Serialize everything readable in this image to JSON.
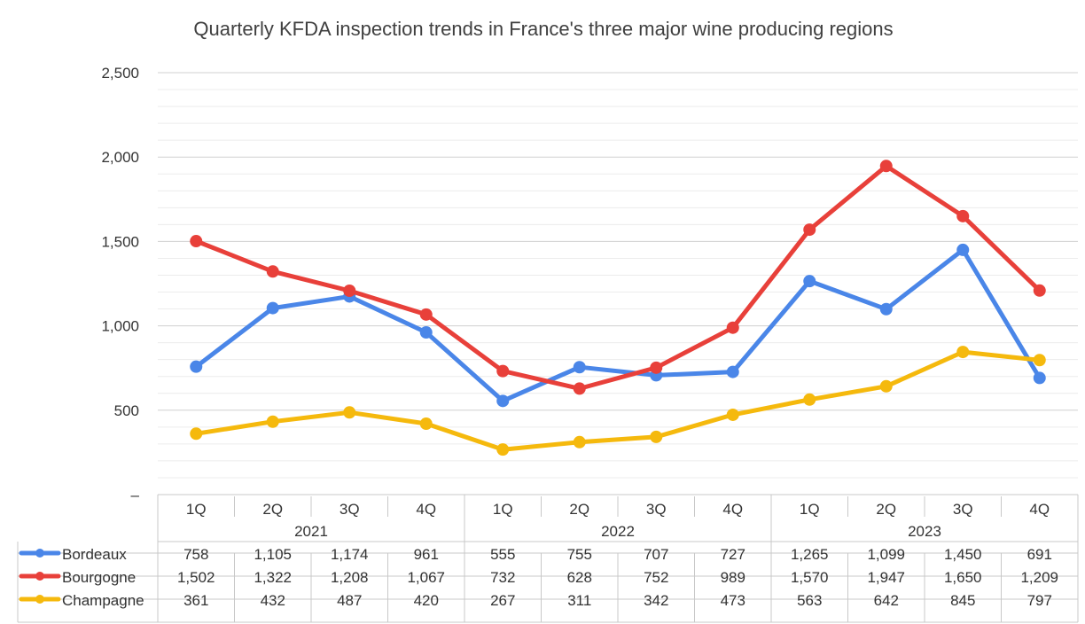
{
  "chart_data": {
    "type": "line",
    "title": "Quarterly KFDA inspection trends in France's three major wine producing regions",
    "xlabel": "",
    "ylabel": "",
    "ylim": [
      0,
      2500
    ],
    "yticks": [
      0,
      500,
      1000,
      1500,
      2000,
      2500
    ],
    "ytick_labels": [
      "–",
      "500",
      "1,000",
      "1,500",
      "2,000",
      "2,500"
    ],
    "quarters": [
      "1Q",
      "2Q",
      "3Q",
      "4Q",
      "1Q",
      "2Q",
      "3Q",
      "4Q",
      "1Q",
      "2Q",
      "3Q",
      "4Q"
    ],
    "years": [
      "2021",
      "2022",
      "2023"
    ],
    "grid": true,
    "legend_placement": "table-left",
    "series": [
      {
        "name": "Bordeaux",
        "color": "#4a86e8",
        "values": [
          758,
          1105,
          1174,
          961,
          555,
          755,
          707,
          727,
          1265,
          1099,
          1450,
          691
        ],
        "labels": [
          "758",
          "1,105",
          "1,174",
          "961",
          "555",
          "755",
          "707",
          "727",
          "1,265",
          "1,099",
          "1,450",
          "691"
        ]
      },
      {
        "name": "Bourgogne",
        "color": "#e8403a",
        "values": [
          1502,
          1322,
          1208,
          1067,
          732,
          628,
          752,
          989,
          1570,
          1947,
          1650,
          1209
        ],
        "labels": [
          "1,502",
          "1,322",
          "1,208",
          "1,067",
          "732",
          "628",
          "752",
          "989",
          "1,570",
          "1,947",
          "1,650",
          "1,209"
        ]
      },
      {
        "name": "Champagne",
        "color": "#f5b90d",
        "values": [
          361,
          432,
          487,
          420,
          267,
          311,
          342,
          473,
          563,
          642,
          845,
          797
        ],
        "labels": [
          "361",
          "432",
          "487",
          "420",
          "267",
          "311",
          "342",
          "473",
          "563",
          "642",
          "845",
          "797"
        ]
      }
    ]
  }
}
